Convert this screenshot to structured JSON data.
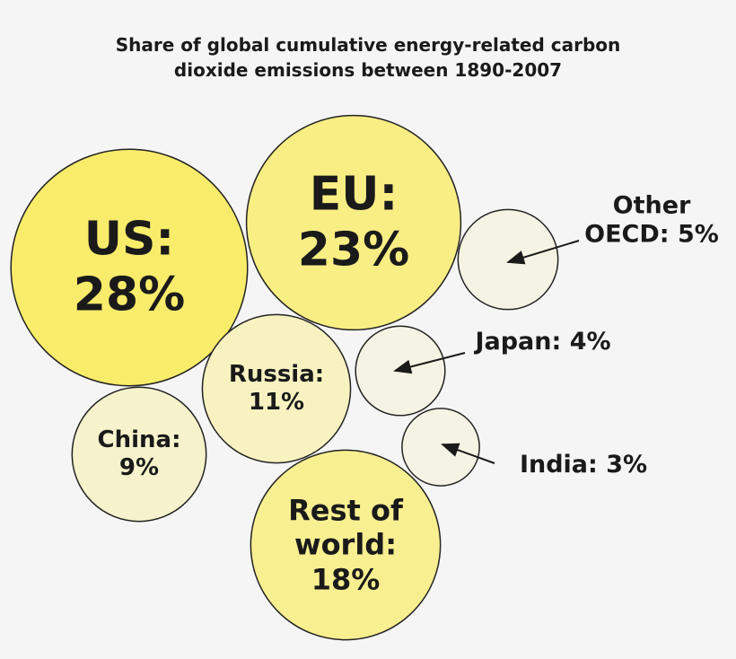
{
  "chart_data": {
    "type": "bubble",
    "title": "Share of global cumulative energy-related carbon dioxide emissions between 1890-2007",
    "categories": [
      "US:",
      "EU:",
      "Other OECD:",
      "Russia:",
      "Japan:",
      "China:",
      "India:",
      "Rest of world:"
    ],
    "values": [
      28,
      23,
      5,
      11,
      4,
      9,
      3,
      18
    ],
    "value_labels": [
      "28%",
      "23%",
      "5%",
      "11%",
      "4%",
      "9%",
      "3%",
      "18%"
    ],
    "colors": [
      "#f9ec6b",
      "#f9ee84",
      "#f5f4e4",
      "#f7f2c0",
      "#f5f4e4",
      "#f6f2cb",
      "#f5f4e4",
      "#f8ef90"
    ]
  }
}
